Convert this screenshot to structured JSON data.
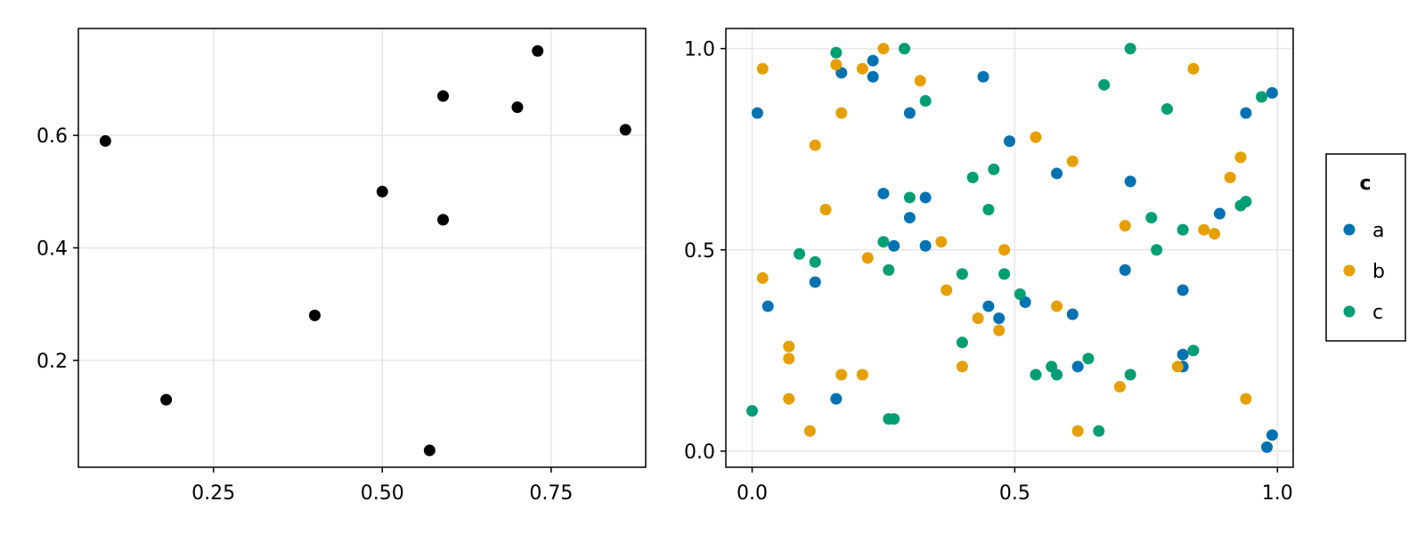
{
  "chart_data": [
    {
      "type": "scatter",
      "title": "",
      "xlabel": "",
      "ylabel": "",
      "xlim": [
        0.05,
        0.89
      ],
      "ylim": [
        0.01,
        0.79
      ],
      "xticks": [
        "0.25",
        "0.50",
        "0.75"
      ],
      "yticks": [
        "0.2",
        "0.4",
        "0.6"
      ],
      "grid": true,
      "legend": false,
      "color": "#000000",
      "points": [
        {
          "x": 0.09,
          "y": 0.59
        },
        {
          "x": 0.18,
          "y": 0.13
        },
        {
          "x": 0.4,
          "y": 0.28
        },
        {
          "x": 0.5,
          "y": 0.5
        },
        {
          "x": 0.57,
          "y": 0.04
        },
        {
          "x": 0.59,
          "y": 0.67
        },
        {
          "x": 0.59,
          "y": 0.45
        },
        {
          "x": 0.7,
          "y": 0.65
        },
        {
          "x": 0.73,
          "y": 0.75
        },
        {
          "x": 0.86,
          "y": 0.61
        }
      ]
    },
    {
      "type": "scatter",
      "title": "",
      "xlabel": "",
      "ylabel": "",
      "xlim": [
        -0.05,
        1.03
      ],
      "ylim": [
        -0.04,
        1.05
      ],
      "xticks": [
        "0.0",
        "0.5",
        "1.0"
      ],
      "yticks": [
        "0.0",
        "0.5",
        "1.0"
      ],
      "grid": true,
      "legend": {
        "title": "c",
        "position": "right"
      },
      "series": [
        {
          "name": "a",
          "color": "#0072b2",
          "points": [
            {
              "x": 0.01,
              "y": 0.84
            },
            {
              "x": 0.03,
              "y": 0.36
            },
            {
              "x": 0.12,
              "y": 0.42
            },
            {
              "x": 0.16,
              "y": 0.13
            },
            {
              "x": 0.17,
              "y": 0.94
            },
            {
              "x": 0.23,
              "y": 0.97
            },
            {
              "x": 0.23,
              "y": 0.93
            },
            {
              "x": 0.25,
              "y": 0.64
            },
            {
              "x": 0.27,
              "y": 0.51
            },
            {
              "x": 0.3,
              "y": 0.84
            },
            {
              "x": 0.3,
              "y": 0.58
            },
            {
              "x": 0.33,
              "y": 0.63
            },
            {
              "x": 0.33,
              "y": 0.51
            },
            {
              "x": 0.44,
              "y": 0.93
            },
            {
              "x": 0.45,
              "y": 0.36
            },
            {
              "x": 0.47,
              "y": 0.33
            },
            {
              "x": 0.49,
              "y": 0.77
            },
            {
              "x": 0.52,
              "y": 0.37
            },
            {
              "x": 0.58,
              "y": 0.69
            },
            {
              "x": 0.61,
              "y": 0.34
            },
            {
              "x": 0.62,
              "y": 0.21
            },
            {
              "x": 0.71,
              "y": 0.45
            },
            {
              "x": 0.72,
              "y": 0.67
            },
            {
              "x": 0.82,
              "y": 0.4
            },
            {
              "x": 0.82,
              "y": 0.24
            },
            {
              "x": 0.82,
              "y": 0.21
            },
            {
              "x": 0.89,
              "y": 0.59
            },
            {
              "x": 0.94,
              "y": 0.84
            },
            {
              "x": 0.98,
              "y": 0.01
            },
            {
              "x": 0.99,
              "y": 0.04
            },
            {
              "x": 0.99,
              "y": 0.89
            }
          ]
        },
        {
          "name": "b",
          "color": "#e69f00",
          "points": [
            {
              "x": 0.02,
              "y": 0.95
            },
            {
              "x": 0.02,
              "y": 0.43
            },
            {
              "x": 0.07,
              "y": 0.26
            },
            {
              "x": 0.07,
              "y": 0.23
            },
            {
              "x": 0.07,
              "y": 0.13
            },
            {
              "x": 0.11,
              "y": 0.05
            },
            {
              "x": 0.12,
              "y": 0.76
            },
            {
              "x": 0.14,
              "y": 0.6
            },
            {
              "x": 0.16,
              "y": 0.96
            },
            {
              "x": 0.17,
              "y": 0.84
            },
            {
              "x": 0.17,
              "y": 0.19
            },
            {
              "x": 0.21,
              "y": 0.95
            },
            {
              "x": 0.21,
              "y": 0.19
            },
            {
              "x": 0.22,
              "y": 0.48
            },
            {
              "x": 0.25,
              "y": 1.0
            },
            {
              "x": 0.32,
              "y": 0.92
            },
            {
              "x": 0.36,
              "y": 0.52
            },
            {
              "x": 0.37,
              "y": 0.4
            },
            {
              "x": 0.4,
              "y": 0.21
            },
            {
              "x": 0.43,
              "y": 0.33
            },
            {
              "x": 0.47,
              "y": 0.3
            },
            {
              "x": 0.48,
              "y": 0.5
            },
            {
              "x": 0.54,
              "y": 0.78
            },
            {
              "x": 0.58,
              "y": 0.36
            },
            {
              "x": 0.61,
              "y": 0.72
            },
            {
              "x": 0.62,
              "y": 0.05
            },
            {
              "x": 0.7,
              "y": 0.16
            },
            {
              "x": 0.71,
              "y": 0.56
            },
            {
              "x": 0.81,
              "y": 0.21
            },
            {
              "x": 0.84,
              "y": 0.95
            },
            {
              "x": 0.86,
              "y": 0.55
            },
            {
              "x": 0.88,
              "y": 0.54
            },
            {
              "x": 0.91,
              "y": 0.68
            },
            {
              "x": 0.93,
              "y": 0.73
            },
            {
              "x": 0.94,
              "y": 0.13
            }
          ]
        },
        {
          "name": "c",
          "color": "#009e73",
          "points": [
            {
              "x": 0.0,
              "y": 0.1
            },
            {
              "x": 0.09,
              "y": 0.49
            },
            {
              "x": 0.12,
              "y": 0.47
            },
            {
              "x": 0.16,
              "y": 0.99
            },
            {
              "x": 0.25,
              "y": 0.52
            },
            {
              "x": 0.26,
              "y": 0.45
            },
            {
              "x": 0.26,
              "y": 0.08
            },
            {
              "x": 0.27,
              "y": 0.08
            },
            {
              "x": 0.29,
              "y": 1.0
            },
            {
              "x": 0.3,
              "y": 0.63
            },
            {
              "x": 0.33,
              "y": 0.87
            },
            {
              "x": 0.4,
              "y": 0.27
            },
            {
              "x": 0.4,
              "y": 0.44
            },
            {
              "x": 0.42,
              "y": 0.68
            },
            {
              "x": 0.45,
              "y": 0.6
            },
            {
              "x": 0.46,
              "y": 0.7
            },
            {
              "x": 0.48,
              "y": 0.44
            },
            {
              "x": 0.51,
              "y": 0.39
            },
            {
              "x": 0.54,
              "y": 0.19
            },
            {
              "x": 0.57,
              "y": 0.21
            },
            {
              "x": 0.58,
              "y": 0.19
            },
            {
              "x": 0.64,
              "y": 0.23
            },
            {
              "x": 0.66,
              "y": 0.05
            },
            {
              "x": 0.67,
              "y": 0.91
            },
            {
              "x": 0.72,
              "y": 1.0
            },
            {
              "x": 0.72,
              "y": 0.19
            },
            {
              "x": 0.76,
              "y": 0.58
            },
            {
              "x": 0.77,
              "y": 0.5
            },
            {
              "x": 0.79,
              "y": 0.85
            },
            {
              "x": 0.82,
              "y": 0.55
            },
            {
              "x": 0.84,
              "y": 0.25
            },
            {
              "x": 0.93,
              "y": 0.61
            },
            {
              "x": 0.94,
              "y": 0.62
            },
            {
              "x": 0.97,
              "y": 0.88
            }
          ]
        }
      ]
    }
  ]
}
